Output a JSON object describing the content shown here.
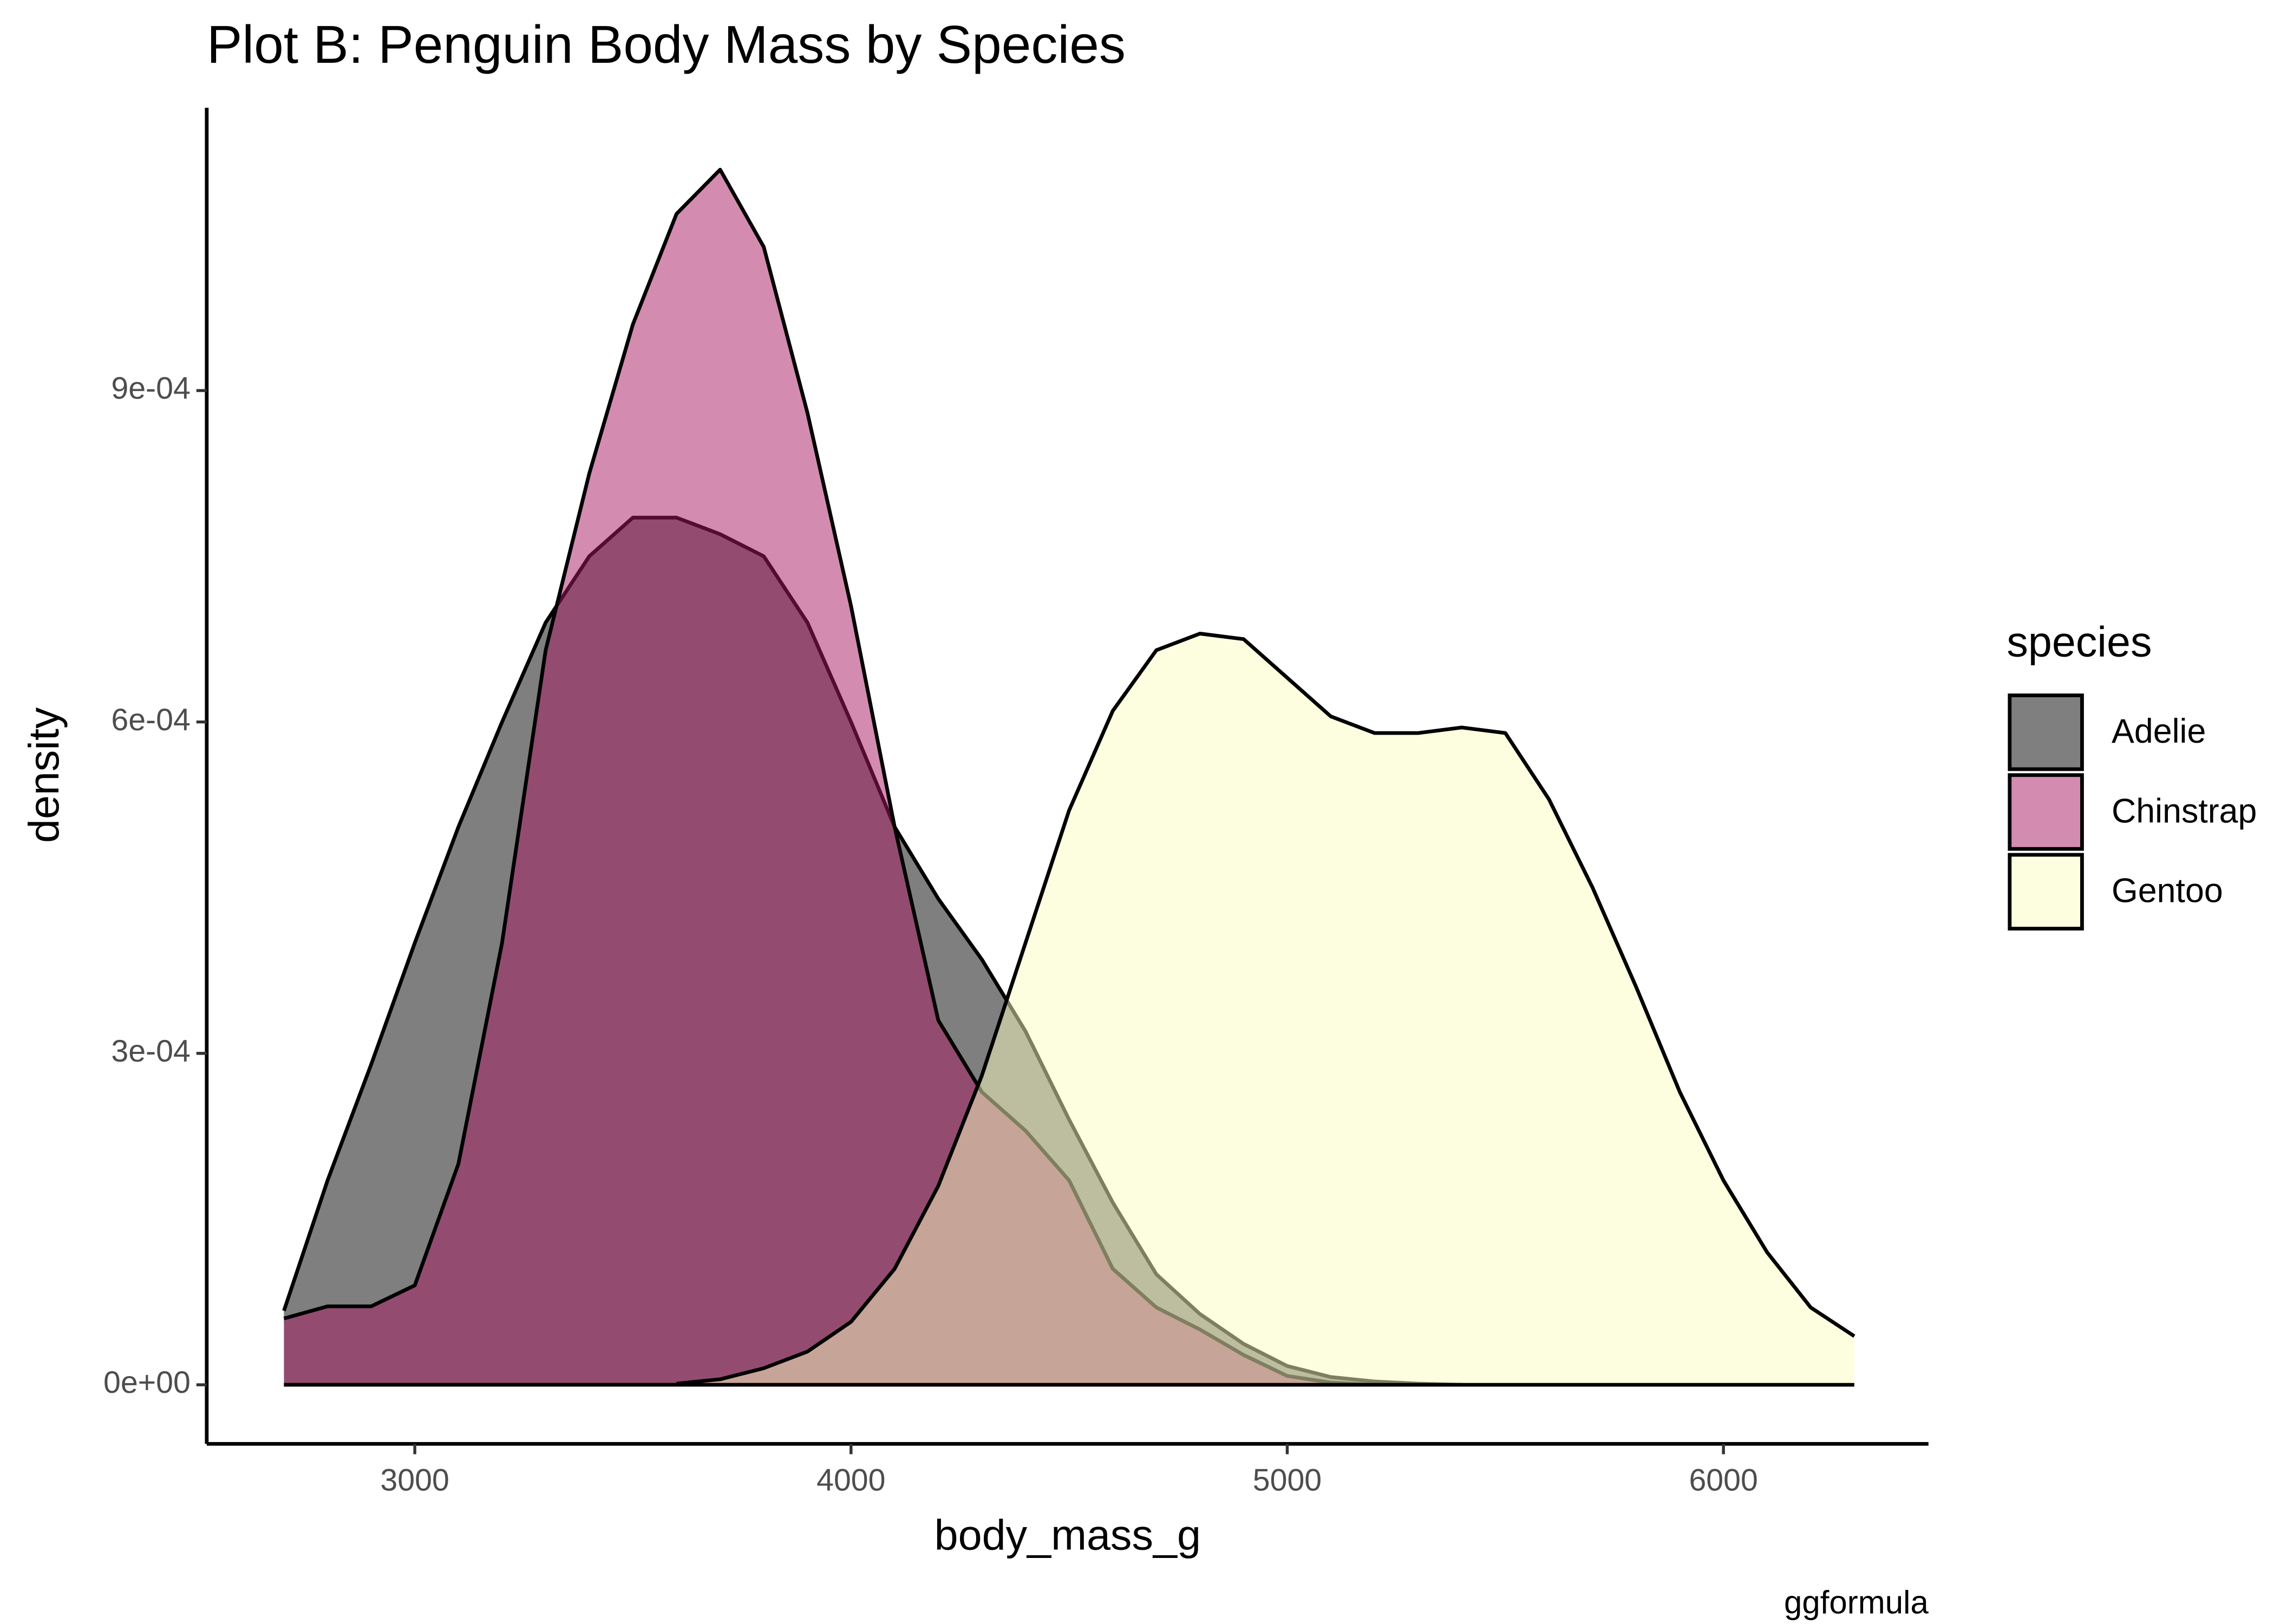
{
  "chart_data": {
    "type": "density",
    "title": "Plot B: Penguin Body Mass by Species",
    "x_label": "body_mass_g",
    "y_label": "density",
    "legend_title": "species",
    "caption": "ggformula",
    "legend_position": "right",
    "x": [
      2700,
      2800,
      2900,
      3000,
      3100,
      3200,
      3300,
      3400,
      3500,
      3600,
      3700,
      3800,
      3900,
      4000,
      4100,
      4200,
      4300,
      4400,
      4500,
      4600,
      4700,
      4800,
      4900,
      5000,
      5100,
      5200,
      5300,
      5400,
      5500,
      5600,
      5700,
      5800,
      5900,
      6000,
      6100,
      6200,
      6300
    ],
    "series": [
      {
        "name": "Adelie",
        "color": "#000000",
        "values": [
          6.7e-05,
          0.000185,
          0.00029,
          0.0004,
          0.000505,
          0.0006,
          0.00069,
          0.00075,
          0.000785,
          0.000785,
          0.00077,
          0.00075,
          0.00069,
          0.0006,
          0.000505,
          0.00044,
          0.000385,
          0.00032,
          0.00024,
          0.000165,
          0.0001,
          6.4e-05,
          3.7e-05,
          1.7e-05,
          7e-06,
          3e-06,
          1e-06,
          0,
          null,
          null,
          null,
          null,
          null,
          null,
          null,
          null,
          null
        ]
      },
      {
        "name": "Chinstrap",
        "color": "#a71a61",
        "values": [
          6e-05,
          7.1e-05,
          7.1e-05,
          9e-05,
          0.0002,
          0.0004,
          0.000665,
          0.000825,
          0.00096,
          0.00106,
          0.0011,
          0.00103,
          0.00088,
          0.000705,
          0.000505,
          0.00033,
          0.000265,
          0.00023,
          0.000185,
          0.000105,
          7e-05,
          5e-05,
          2.7e-05,
          8e-06,
          2e-06,
          0,
          null,
          null,
          null,
          null,
          null,
          null,
          null,
          null,
          null,
          null,
          null
        ]
      },
      {
        "name": "Gentoo",
        "color": "#fbfcbf",
        "values": [
          null,
          null,
          null,
          null,
          null,
          null,
          null,
          null,
          null,
          1e-06,
          5e-06,
          1.5e-05,
          3e-05,
          5.7e-05,
          0.000105,
          0.00018,
          0.00028,
          0.0004,
          0.00052,
          0.00061,
          0.000665,
          0.00068,
          0.000675,
          0.00064,
          0.000605,
          0.00059,
          0.00059,
          0.000595,
          0.00059,
          0.00053,
          0.00045,
          0.00036,
          0.000265,
          0.000185,
          0.00012,
          7e-05,
          4.4e-05
        ]
      }
    ],
    "xlim": [
      2523,
      6470
    ],
    "ylim": [
      -5.35e-05,
      0.001156
    ],
    "xticks": [
      3000,
      4000,
      5000,
      6000
    ],
    "yticks": [
      {
        "value": 0,
        "label": "0e+00"
      },
      {
        "value": 0.0003,
        "label": "3e-04"
      },
      {
        "value": 0.0006,
        "label": "6e-04"
      },
      {
        "value": 0.0009,
        "label": "9e-04"
      }
    ],
    "grid": false
  }
}
